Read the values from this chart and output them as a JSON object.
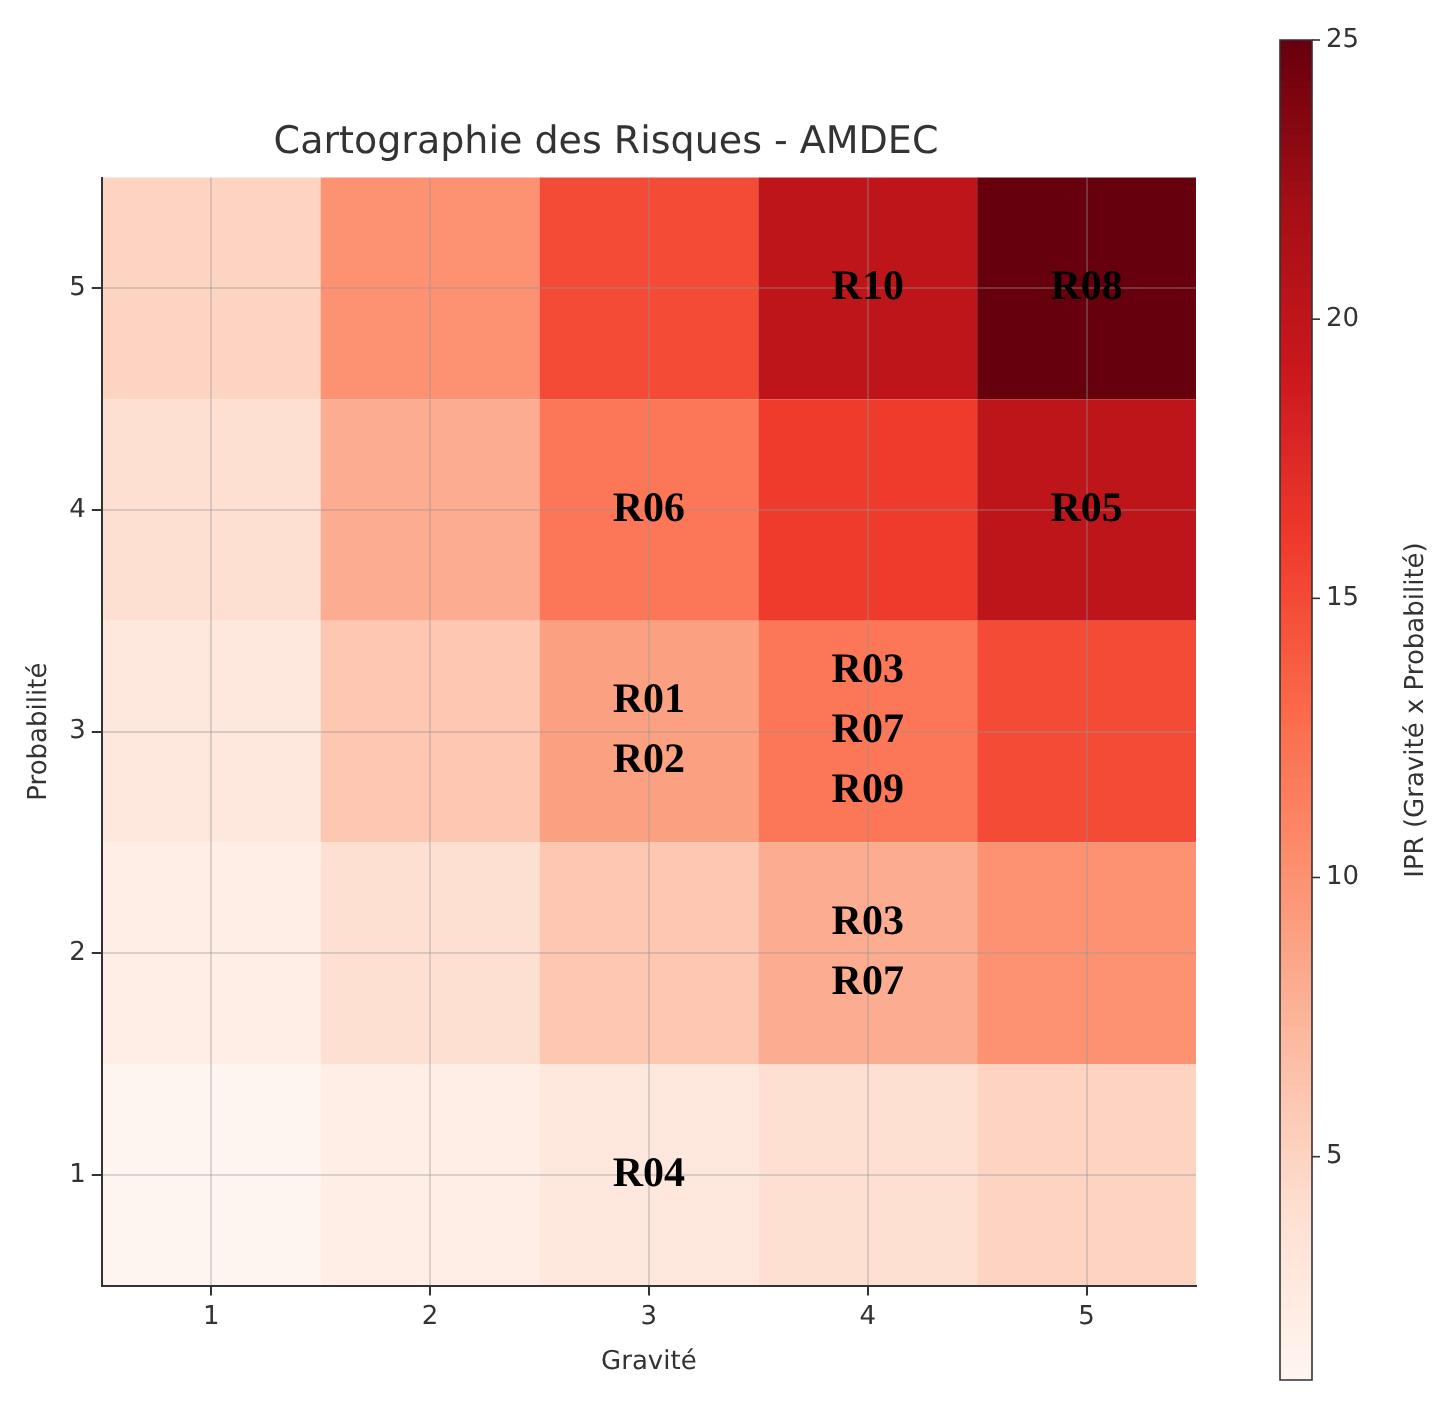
{
  "chart_data": {
    "type": "heatmap",
    "title": "Cartographie des Risques - AMDEC",
    "xlabel": "Gravité",
    "ylabel": "Probabilité",
    "clabel": "IPR (Gravité x Probabilité)",
    "categories": [
      "1",
      "2",
      "3",
      "4",
      "5"
    ],
    "y_categories": [
      "5",
      "4",
      "3",
      "2",
      "1"
    ],
    "cells": [
      [
        5,
        10,
        15,
        20,
        25
      ],
      [
        4,
        8,
        12,
        16,
        20
      ],
      [
        3,
        6,
        9,
        12,
        15
      ],
      [
        2,
        4,
        6,
        8,
        10
      ],
      [
        1,
        2,
        3,
        4,
        5
      ]
    ],
    "cell_labels": [
      [
        null,
        null,
        null,
        "R10",
        "R08"
      ],
      [
        null,
        null,
        "R06",
        null,
        "R05"
      ],
      [
        null,
        null,
        "R01\nR02",
        "R03\nR07\nR09",
        null
      ],
      [
        null,
        null,
        null,
        "R03\nR07",
        null
      ],
      [
        null,
        null,
        "R04",
        null,
        null
      ]
    ],
    "clim": [
      1,
      25
    ],
    "cticks": [
      5,
      10,
      15,
      20,
      25
    ],
    "grid": true
  }
}
